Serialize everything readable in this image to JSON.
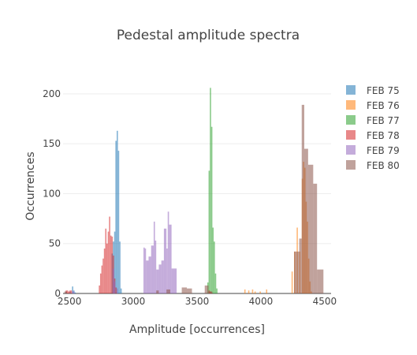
{
  "chart_data": {
    "type": "bar",
    "title": "Pedestal amplitude spectra",
    "xlabel": "Amplitude [occurrences]",
    "ylabel": "Occurrences",
    "xlim": [
      2450,
      4550
    ],
    "ylim": [
      0,
      215
    ],
    "xticks": [
      2500,
      3000,
      3500,
      4000,
      4500
    ],
    "yticks": [
      0,
      50,
      100,
      150,
      200
    ],
    "x_tick_labels": [
      "2500",
      "3000",
      "3500",
      "4000",
      "4500"
    ],
    "y_tick_labels": [
      "0",
      "50",
      "100",
      "150",
      "200"
    ],
    "grid": true,
    "barmode": "overlay",
    "legend_position": "right",
    "series": [
      {
        "name": "FEB 75",
        "color": "#1f77b4",
        "bins": [
          [
            2470,
            2480,
            2
          ],
          [
            2500,
            2510,
            2
          ],
          [
            2520,
            2530,
            7
          ],
          [
            2530,
            2540,
            3
          ],
          [
            2540,
            2550,
            1
          ],
          [
            2830,
            2840,
            40
          ],
          [
            2840,
            2850,
            52
          ],
          [
            2850,
            2860,
            62
          ],
          [
            2860,
            2870,
            153
          ],
          [
            2870,
            2880,
            163
          ],
          [
            2880,
            2890,
            143
          ],
          [
            2890,
            2900,
            52
          ],
          [
            2900,
            2910,
            5
          ]
        ]
      },
      {
        "name": "FEB 76",
        "color": "#ff7f0e",
        "bins": [
          [
            3870,
            3880,
            4
          ],
          [
            3900,
            3910,
            3
          ],
          [
            3930,
            3940,
            4
          ],
          [
            3950,
            3960,
            2
          ],
          [
            3990,
            4000,
            2
          ],
          [
            4040,
            4050,
            4
          ],
          [
            4240,
            4250,
            22
          ],
          [
            4260,
            4270,
            42
          ],
          [
            4280,
            4290,
            66
          ],
          [
            4300,
            4310,
            42
          ],
          [
            4320,
            4330,
            115
          ],
          [
            4330,
            4340,
            132
          ],
          [
            4340,
            4350,
            126
          ],
          [
            4350,
            4360,
            92
          ],
          [
            4360,
            4370,
            72
          ],
          [
            4370,
            4380,
            35
          ],
          [
            4380,
            4390,
            12
          ],
          [
            4390,
            4400,
            2
          ]
        ]
      },
      {
        "name": "FEB 77",
        "color": "#2ca02c",
        "bins": [
          [
            3580,
            3590,
            11
          ],
          [
            3590,
            3600,
            123
          ],
          [
            3600,
            3610,
            206
          ],
          [
            3610,
            3620,
            167
          ],
          [
            3620,
            3630,
            66
          ],
          [
            3630,
            3640,
            52
          ],
          [
            3640,
            3650,
            20
          ],
          [
            3650,
            3660,
            5
          ]
        ]
      },
      {
        "name": "FEB 78",
        "color": "#d62728",
        "bins": [
          [
            2470,
            2490,
            3
          ],
          [
            2490,
            2500,
            2
          ],
          [
            2500,
            2520,
            3
          ],
          [
            2730,
            2740,
            8
          ],
          [
            2740,
            2750,
            20
          ],
          [
            2750,
            2760,
            28
          ],
          [
            2760,
            2770,
            35
          ],
          [
            2770,
            2780,
            45
          ],
          [
            2780,
            2790,
            65
          ],
          [
            2790,
            2800,
            50
          ],
          [
            2800,
            2810,
            62
          ],
          [
            2810,
            2820,
            77
          ],
          [
            2820,
            2830,
            58
          ],
          [
            2830,
            2840,
            57
          ],
          [
            2840,
            2850,
            38
          ],
          [
            2850,
            2860,
            15
          ],
          [
            2860,
            2870,
            6
          ],
          [
            3590,
            3600,
            3
          ],
          [
            3600,
            3610,
            2
          ],
          [
            3610,
            3620,
            1
          ]
        ]
      },
      {
        "name": "FEB 79",
        "color": "#9467bd",
        "bins": [
          [
            2520,
            2540,
            2
          ],
          [
            2840,
            2850,
            25
          ],
          [
            2850,
            2860,
            12
          ],
          [
            2870,
            2880,
            5
          ],
          [
            3080,
            3090,
            46
          ],
          [
            3090,
            3100,
            45
          ],
          [
            3100,
            3120,
            33
          ],
          [
            3120,
            3140,
            37
          ],
          [
            3140,
            3160,
            48
          ],
          [
            3160,
            3170,
            72
          ],
          [
            3170,
            3180,
            53
          ],
          [
            3180,
            3200,
            24
          ],
          [
            3200,
            3220,
            29
          ],
          [
            3220,
            3240,
            33
          ],
          [
            3240,
            3260,
            65
          ],
          [
            3260,
            3270,
            45
          ],
          [
            3270,
            3280,
            82
          ],
          [
            3280,
            3300,
            69
          ],
          [
            3300,
            3340,
            25
          ]
        ]
      },
      {
        "name": "FEB 80",
        "color": "#8c564b",
        "bins": [
          [
            2460,
            2480,
            2
          ],
          [
            3180,
            3200,
            3
          ],
          [
            3260,
            3290,
            4
          ],
          [
            3380,
            3420,
            6
          ],
          [
            3420,
            3460,
            5
          ],
          [
            3560,
            3590,
            8
          ],
          [
            3590,
            3620,
            2
          ],
          [
            4260,
            4300,
            42
          ],
          [
            4300,
            4320,
            55
          ],
          [
            4320,
            4340,
            189
          ],
          [
            4340,
            4370,
            145
          ],
          [
            4370,
            4410,
            129
          ],
          [
            4410,
            4440,
            110
          ],
          [
            4440,
            4490,
            24
          ]
        ]
      }
    ]
  }
}
